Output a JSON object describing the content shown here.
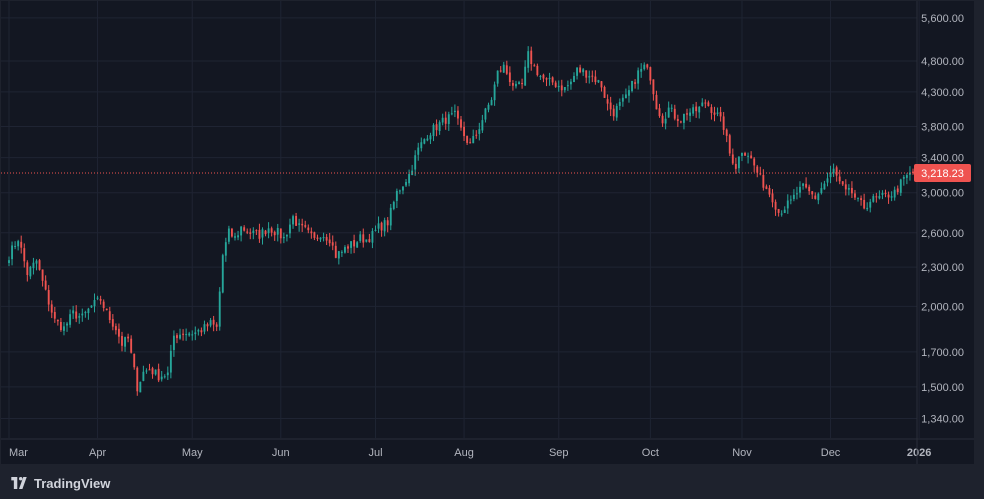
{
  "brand": {
    "name": "TradingView",
    "logo_icon": "tradingview-logo-icon"
  },
  "colors": {
    "background": "#131722",
    "frame": "#1e222d",
    "up": "#26a69a",
    "down": "#ef5350",
    "grid": "#1f2433",
    "text": "#b2b5be",
    "last_price_line": "#ef5350"
  },
  "chart_data": {
    "type": "candlestick",
    "scale": "log",
    "grid": true,
    "ylim": [
      1250,
      5800
    ],
    "y_ticks": [
      "5,600.00",
      "4,800.00",
      "4,300.00",
      "3,800.00",
      "3,400.00",
      "3,000.00",
      "2,600.00",
      "2,300.00",
      "2,000.00",
      "1,700.00",
      "1,500.00",
      "1,340.00"
    ],
    "y_tick_values": [
      5600,
      4800,
      4300,
      3800,
      3400,
      3000,
      2600,
      2300,
      2000,
      1700,
      1500,
      1340
    ],
    "x_ticks": [
      "Mar",
      "Apr",
      "May",
      "Jun",
      "Jul",
      "Aug",
      "Sep",
      "Oct",
      "Nov",
      "Dec",
      "2026"
    ],
    "last_price": 3218.23,
    "last_price_label": "3,218.23",
    "anchors": [
      [
        0,
        2400
      ],
      [
        3,
        2550
      ],
      [
        6,
        2250
      ],
      [
        9,
        2350
      ],
      [
        12,
        2100
      ],
      [
        15,
        1900
      ],
      [
        18,
        1850
      ],
      [
        21,
        1950
      ],
      [
        24,
        1920
      ],
      [
        27,
        2000
      ],
      [
        30,
        2050
      ],
      [
        32,
        1950
      ],
      [
        35,
        1850
      ],
      [
        37,
        1750
      ],
      [
        39,
        1780
      ],
      [
        42,
        1500
      ],
      [
        44,
        1580
      ],
      [
        46,
        1600
      ],
      [
        49,
        1560
      ],
      [
        52,
        1570
      ],
      [
        54,
        1800
      ],
      [
        57,
        1820
      ],
      [
        61,
        1820
      ],
      [
        64,
        1850
      ],
      [
        66,
        1880
      ],
      [
        68,
        1850
      ],
      [
        70,
        2400
      ],
      [
        72,
        2600
      ],
      [
        74,
        2550
      ],
      [
        76,
        2650
      ],
      [
        79,
        2600
      ],
      [
        82,
        2580
      ],
      [
        85,
        2650
      ],
      [
        88,
        2600
      ],
      [
        90,
        2550
      ],
      [
        93,
        2750
      ],
      [
        95,
        2650
      ],
      [
        97,
        2620
      ],
      [
        100,
        2530
      ],
      [
        102,
        2600
      ],
      [
        105,
        2550
      ],
      [
        107,
        2400
      ],
      [
        109,
        2430
      ],
      [
        111,
        2480
      ],
      [
        113,
        2500
      ],
      [
        115,
        2550
      ],
      [
        117,
        2540
      ],
      [
        119,
        2580
      ],
      [
        121,
        2650
      ],
      [
        124,
        2700
      ],
      [
        127,
        3000
      ],
      [
        131,
        3200
      ],
      [
        134,
        3500
      ],
      [
        137,
        3700
      ],
      [
        140,
        3800
      ],
      [
        143,
        3900
      ],
      [
        146,
        3950
      ],
      [
        148,
        3750
      ],
      [
        151,
        3550
      ],
      [
        153,
        3700
      ],
      [
        155,
        3900
      ],
      [
        158,
        4200
      ],
      [
        160,
        4600
      ],
      [
        162,
        4700
      ],
      [
        164,
        4500
      ],
      [
        166,
        4350
      ],
      [
        168,
        4400
      ],
      [
        170,
        4900
      ],
      [
        172,
        4700
      ],
      [
        174,
        4550
      ],
      [
        176,
        4450
      ],
      [
        178,
        4450
      ],
      [
        180,
        4400
      ],
      [
        182,
        4350
      ],
      [
        184,
        4450
      ],
      [
        186,
        4650
      ],
      [
        188,
        4620
      ],
      [
        190,
        4580
      ],
      [
        192,
        4500
      ],
      [
        194,
        4400
      ],
      [
        196,
        4100
      ],
      [
        198,
        4000
      ],
      [
        200,
        4100
      ],
      [
        202,
        4200
      ],
      [
        204,
        4400
      ],
      [
        206,
        4600
      ],
      [
        208,
        4700
      ],
      [
        210,
        4550
      ],
      [
        212,
        4100
      ],
      [
        214,
        3900
      ],
      [
        216,
        4050
      ],
      [
        218,
        3950
      ],
      [
        220,
        3900
      ],
      [
        222,
        4000
      ],
      [
        224,
        4000
      ],
      [
        226,
        4050
      ],
      [
        228,
        4150
      ],
      [
        230,
        4050
      ],
      [
        232,
        3950
      ],
      [
        234,
        3800
      ],
      [
        236,
        3450
      ],
      [
        238,
        3300
      ],
      [
        240,
        3500
      ],
      [
        242,
        3450
      ],
      [
        244,
        3300
      ],
      [
        246,
        3150
      ],
      [
        248,
        3050
      ],
      [
        250,
        2950
      ],
      [
        252,
        2800
      ],
      [
        254,
        2850
      ],
      [
        256,
        2900
      ],
      [
        258,
        3000
      ],
      [
        260,
        3050
      ],
      [
        262,
        3000
      ],
      [
        264,
        2950
      ],
      [
        266,
        3050
      ],
      [
        268,
        3150
      ],
      [
        270,
        3250
      ],
      [
        272,
        3100
      ],
      [
        274,
        3000
      ],
      [
        276,
        3000
      ],
      [
        278,
        2900
      ],
      [
        280,
        2850
      ],
      [
        282,
        2920
      ],
      [
        284,
        2930
      ],
      [
        286,
        2950
      ],
      [
        288,
        2980
      ],
      [
        290,
        3000
      ],
      [
        292,
        3100
      ],
      [
        294,
        3180
      ],
      [
        296,
        3218
      ]
    ],
    "candle_count": 297
  }
}
